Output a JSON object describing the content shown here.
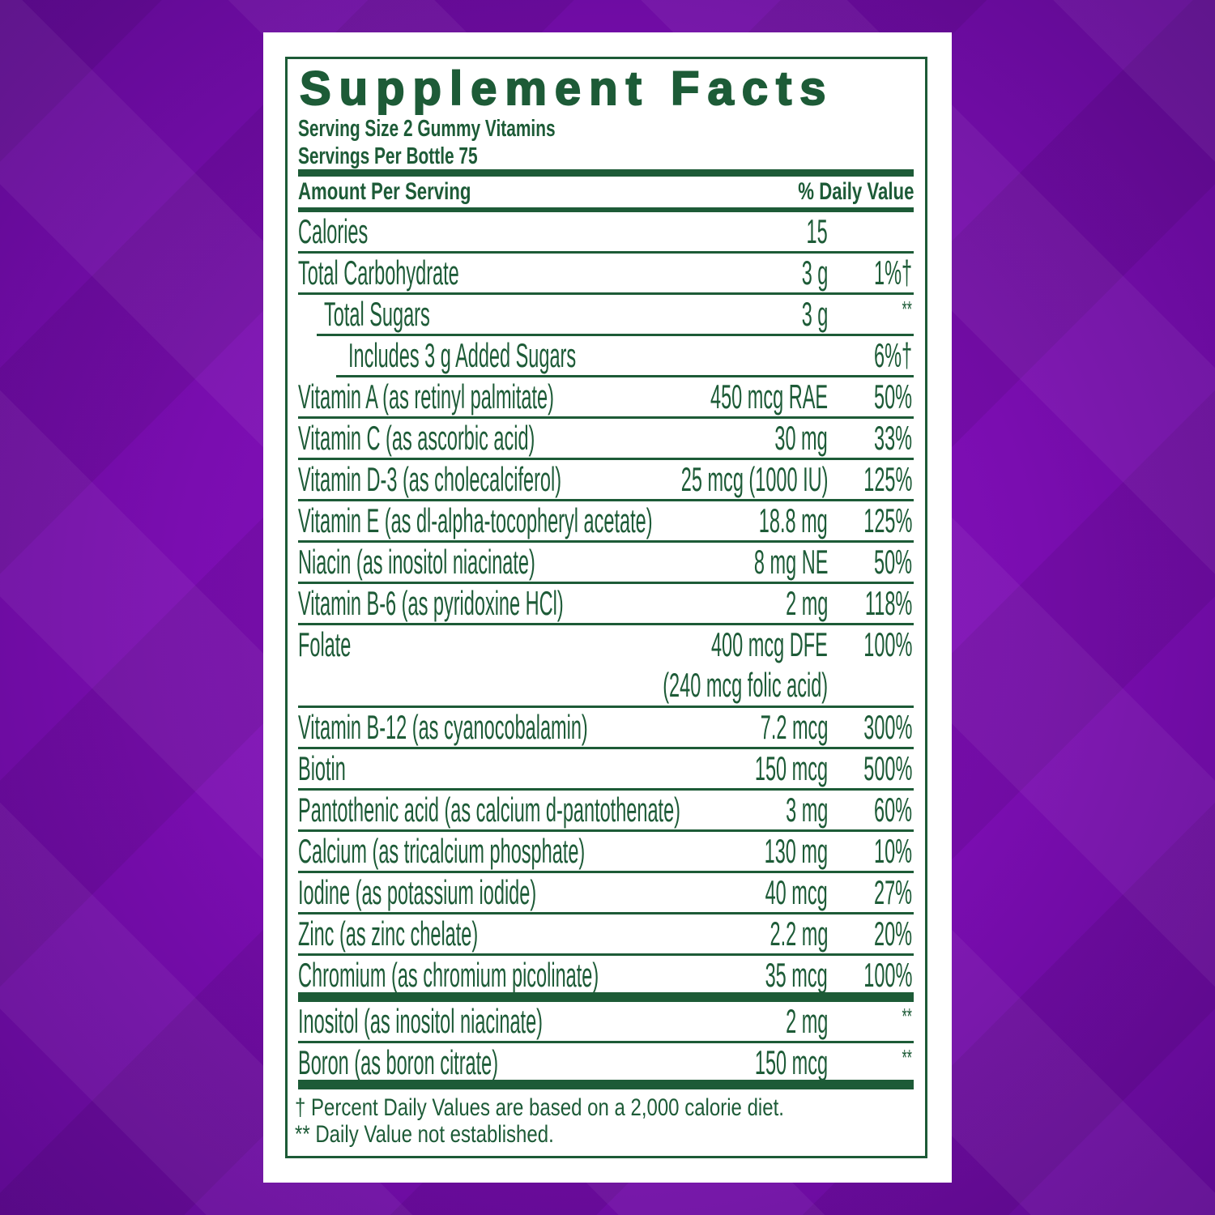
{
  "label": {
    "title": "Supplement Facts",
    "serving_size": "Serving Size 2 Gummy Vitamins",
    "servings_per": "Servings Per Bottle 75",
    "amount_header": "Amount Per Serving",
    "dv_header": "% Daily Value",
    "rows": [
      {
        "name": "Calories",
        "amount": "15",
        "dv": ""
      },
      {
        "name": "Total Carbohydrate",
        "amount": "3 g",
        "dv": "1%†"
      },
      {
        "name": "Total Sugars",
        "amount": "3 g",
        "dv": "**"
      },
      {
        "name": "Includes 3 g Added Sugars",
        "amount": "",
        "dv": "6%†"
      },
      {
        "name": "Vitamin A (as retinyl palmitate)",
        "amount": "450 mcg RAE",
        "dv": "50%"
      },
      {
        "name": "Vitamin C (as ascorbic acid)",
        "amount": "30 mg",
        "dv": "33%"
      },
      {
        "name": "Vitamin D-3 (as cholecalciferol)",
        "amount": "25 mcg (1000 IU)",
        "dv": "125%"
      },
      {
        "name": "Vitamin E (as dl-alpha-tocopheryl acetate)",
        "amount": "18.8 mg",
        "dv": "125%"
      },
      {
        "name": "Niacin (as inositol niacinate)",
        "amount": "8 mg NE",
        "dv": "50%"
      },
      {
        "name": "Vitamin B-6 (as pyridoxine HCl)",
        "amount": "2 mg",
        "dv": "118%"
      },
      {
        "name": "Folate",
        "amount": "400 mcg DFE",
        "amount2": "(240 mcg folic acid)",
        "dv": "100%"
      },
      {
        "name": "Vitamin B-12 (as cyanocobalamin)",
        "amount": "7.2 mcg",
        "dv": "300%"
      },
      {
        "name": "Biotin",
        "amount": "150 mcg",
        "dv": "500%"
      },
      {
        "name": "Pantothenic acid (as calcium d-pantothenate)",
        "amount": "3 mg",
        "dv": "60%"
      },
      {
        "name": "Calcium (as tricalcium phosphate)",
        "amount": "130 mg",
        "dv": "10%"
      },
      {
        "name": "Iodine (as potassium iodide)",
        "amount": "40 mcg",
        "dv": "27%"
      },
      {
        "name": "Zinc (as zinc chelate)",
        "amount": "2.2 mg",
        "dv": "20%"
      },
      {
        "name": "Chromium (as chromium picolinate)",
        "amount": "35 mcg",
        "dv": "100%"
      }
    ],
    "other_rows": [
      {
        "name": "Inositol (as inositol niacinate)",
        "amount": "2 mg",
        "dv": "**"
      },
      {
        "name": "Boron (as boron citrate)",
        "amount": "150 mcg",
        "dv": "**"
      }
    ],
    "footnote_1": "† Percent Daily Values are based on a 2,000 calorie diet.",
    "footnote_2": "** Daily Value not established."
  },
  "colors": {
    "label_green": "#1d5b37",
    "background_purple": "#7a0db0",
    "card": "#ffffff"
  }
}
